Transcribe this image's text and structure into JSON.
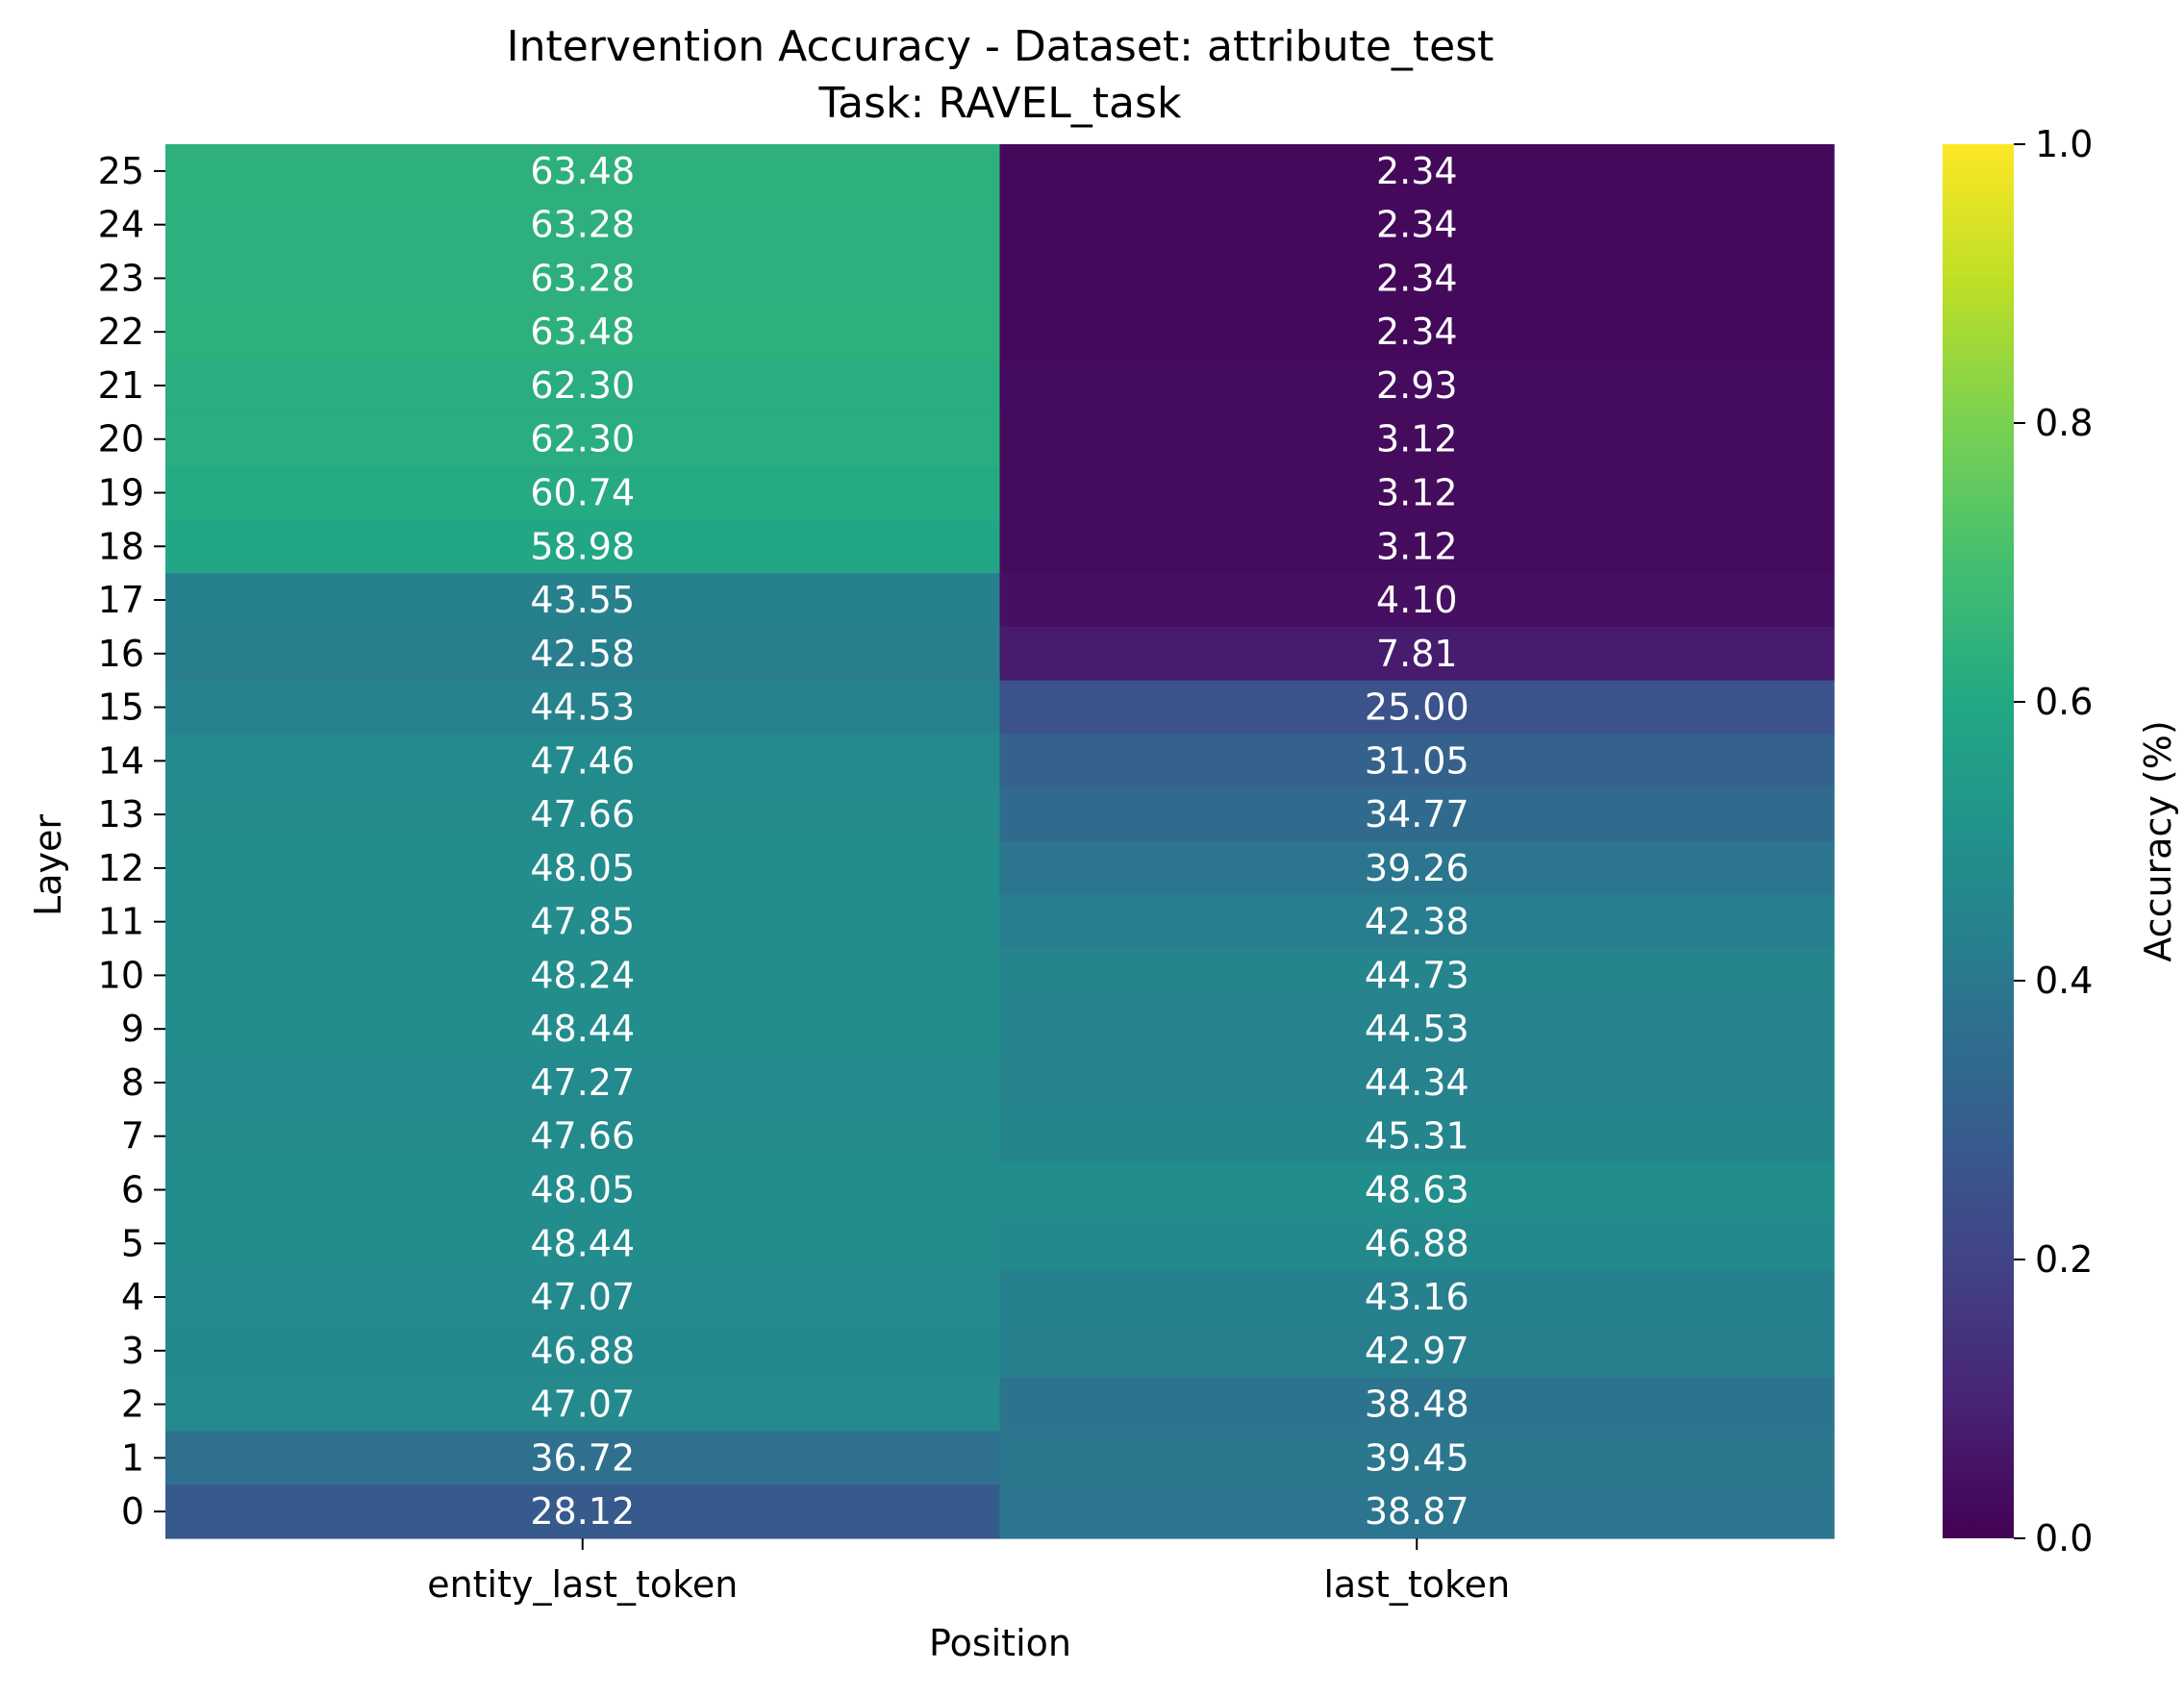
{
  "chart_data": {
    "type": "heatmap",
    "title": "Intervention Accuracy - Dataset: attribute_test",
    "subtitle": "Task: RAVEL_task",
    "xlabel": "Position",
    "ylabel": "Layer",
    "colorbar_label": "Accuracy (%)",
    "colormap": "viridis",
    "value_range": [
      0,
      1
    ],
    "colorbar_ticks": [
      "0.0",
      "0.2",
      "0.4",
      "0.6",
      "0.8",
      "1.0"
    ],
    "x_categories": [
      "entity_last_token",
      "last_token"
    ],
    "y_categories": [
      "25",
      "24",
      "23",
      "22",
      "21",
      "20",
      "19",
      "18",
      "17",
      "16",
      "15",
      "14",
      "13",
      "12",
      "11",
      "10",
      "9",
      "8",
      "7",
      "6",
      "5",
      "4",
      "3",
      "2",
      "1",
      "0"
    ],
    "values": [
      [
        63.48,
        2.34
      ],
      [
        63.28,
        2.34
      ],
      [
        63.28,
        2.34
      ],
      [
        63.48,
        2.34
      ],
      [
        62.3,
        2.93
      ],
      [
        62.3,
        3.12
      ],
      [
        60.74,
        3.12
      ],
      [
        58.98,
        3.12
      ],
      [
        43.55,
        4.1
      ],
      [
        42.58,
        7.81
      ],
      [
        44.53,
        25.0
      ],
      [
        47.46,
        31.05
      ],
      [
        47.66,
        34.77
      ],
      [
        48.05,
        39.26
      ],
      [
        47.85,
        42.38
      ],
      [
        48.24,
        44.73
      ],
      [
        48.44,
        44.53
      ],
      [
        47.27,
        44.34
      ],
      [
        47.66,
        45.31
      ],
      [
        48.05,
        48.63
      ],
      [
        48.44,
        46.88
      ],
      [
        47.07,
        43.16
      ],
      [
        46.88,
        42.97
      ],
      [
        47.07,
        38.48
      ],
      [
        36.72,
        39.45
      ],
      [
        28.12,
        38.87
      ]
    ],
    "annotations": [
      [
        "63.48",
        "2.34"
      ],
      [
        "63.28",
        "2.34"
      ],
      [
        "63.28",
        "2.34"
      ],
      [
        "63.48",
        "2.34"
      ],
      [
        "62.30",
        "2.93"
      ],
      [
        "62.30",
        "3.12"
      ],
      [
        "60.74",
        "3.12"
      ],
      [
        "58.98",
        "3.12"
      ],
      [
        "43.55",
        "4.10"
      ],
      [
        "42.58",
        "7.81"
      ],
      [
        "44.53",
        "25.00"
      ],
      [
        "47.46",
        "31.05"
      ],
      [
        "47.66",
        "34.77"
      ],
      [
        "48.05",
        "39.26"
      ],
      [
        "47.85",
        "42.38"
      ],
      [
        "48.24",
        "44.73"
      ],
      [
        "48.44",
        "44.53"
      ],
      [
        "47.27",
        "44.34"
      ],
      [
        "47.66",
        "45.31"
      ],
      [
        "48.05",
        "48.63"
      ],
      [
        "48.44",
        "46.88"
      ],
      [
        "47.07",
        "43.16"
      ],
      [
        "46.88",
        "42.97"
      ],
      [
        "47.07",
        "38.48"
      ],
      [
        "36.72",
        "39.45"
      ],
      [
        "28.12",
        "38.87"
      ]
    ],
    "grid": false,
    "legend": "colorbar-right"
  }
}
